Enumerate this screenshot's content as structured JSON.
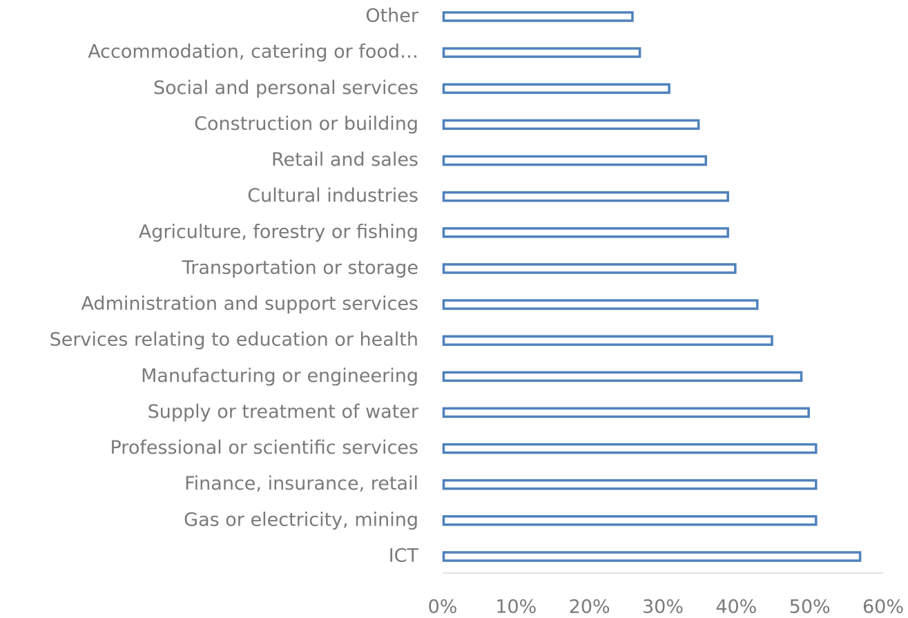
{
  "chart_data": {
    "type": "bar",
    "orientation": "horizontal",
    "categories": [
      "Other",
      "Accommodation, catering or food…",
      "Social and personal services",
      "Construction or building",
      "Retail and sales",
      "Cultural industries",
      "Agriculture, forestry or fishing",
      "Transportation or storage",
      "Administration and support services",
      "Services relating to education or health",
      "Manufacturing or engineering",
      "Supply or treatment of water",
      "Professional or scientific services",
      "Finance, insurance, retail",
      "Gas or electricity, mining",
      "ICT"
    ],
    "values": [
      26,
      27,
      31,
      35,
      36,
      39,
      39,
      40,
      43,
      45,
      49,
      50,
      51,
      51,
      51,
      57
    ],
    "color": "#4f81bd",
    "xlim": [
      0,
      60
    ],
    "xticks": [
      {
        "value": 0,
        "label": "0%"
      },
      {
        "value": 10,
        "label": "10%"
      },
      {
        "value": 20,
        "label": "20%"
      },
      {
        "value": 30,
        "label": "30%"
      },
      {
        "value": 40,
        "label": "40%"
      },
      {
        "value": 50,
        "label": "50%"
      },
      {
        "value": 60,
        "label": "60%"
      }
    ],
    "grid": false
  }
}
